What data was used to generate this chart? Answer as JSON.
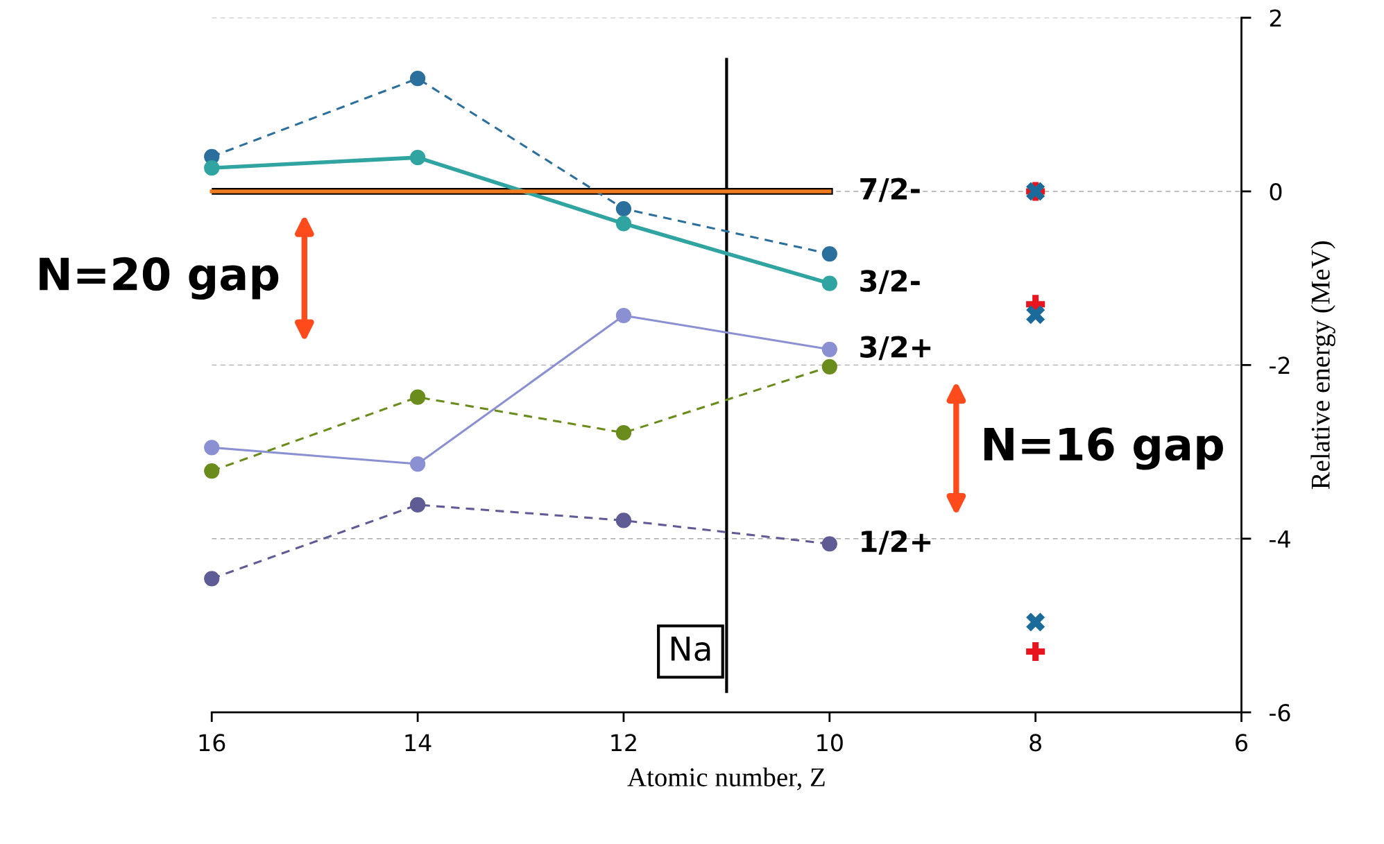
{
  "chart_data": {
    "type": "line",
    "xlabel": "Atomic number, Z",
    "ylabel": "Relative energy (MeV)",
    "xlim": [
      16,
      6
    ],
    "xticks": [
      16,
      14,
      12,
      10,
      8,
      6
    ],
    "ylim": [
      -6,
      2
    ],
    "yticks": [
      -6,
      -4,
      -2,
      0,
      2
    ],
    "grid": "y",
    "series": [
      {
        "color": "#2b6f9c",
        "x": [
          16,
          14,
          12,
          10
        ],
        "values": [
          0.4,
          1.3,
          -0.2,
          -0.72
        ],
        "line_style": "dashed",
        "marker": "circle"
      },
      {
        "name": "3/2-",
        "color": "#2fa4a0",
        "x": [
          16,
          14,
          12,
          10
        ],
        "values": [
          0.27,
          0.39,
          -0.37,
          -1.06
        ],
        "line_style": "solid",
        "marker": "circle"
      },
      {
        "name": "7/2-",
        "color": "#f07a1e",
        "x": [
          16,
          10
        ],
        "values": [
          0,
          0
        ],
        "line_style": "solid",
        "marker": "none"
      },
      {
        "name": "3/2+",
        "color": "#8a90d2",
        "x": [
          16,
          14,
          12,
          10
        ],
        "values": [
          -2.95,
          -3.14,
          -1.43,
          -1.82
        ],
        "line_style": "solid",
        "marker": "circle"
      },
      {
        "color": "#6a8c1c",
        "x": [
          16,
          14,
          12,
          10
        ],
        "values": [
          -3.22,
          -2.37,
          -2.78,
          -2.02
        ],
        "line_style": "dashed",
        "marker": "circle"
      },
      {
        "name": "1/2+",
        "color": "#5f5b94",
        "x": [
          16,
          14,
          12,
          10
        ],
        "values": [
          -4.46,
          -3.61,
          -3.79,
          -4.06
        ],
        "line_style": "dashed",
        "marker": "circle"
      },
      {
        "type": "scatter",
        "color": "#e8141e",
        "x": [
          8,
          8,
          8
        ],
        "values": [
          0,
          -1.3,
          -5.3
        ],
        "marker": "cross"
      },
      {
        "type": "scatter",
        "color": "#1a6a9a",
        "x": [
          8,
          8,
          8
        ],
        "values": [
          0,
          -1.42,
          -4.96
        ],
        "marker": "x"
      }
    ],
    "ref_lines": [
      {
        "axis": "x",
        "value": 11,
        "label": "Na",
        "color": "#000000"
      }
    ],
    "annotations": [
      "N=20 gap",
      "N=16 gap"
    ]
  }
}
